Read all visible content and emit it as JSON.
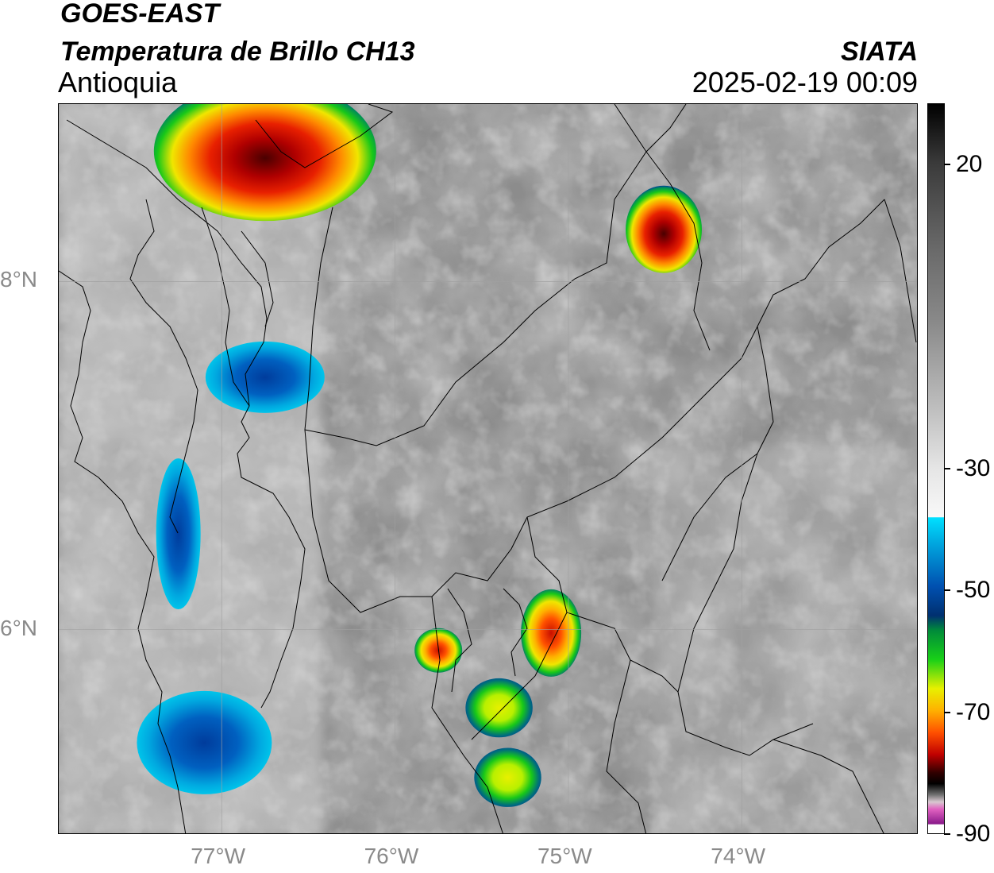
{
  "header": {
    "satellite": "GOES-EAST",
    "product": "Temperatura de Brillo CH13",
    "region": "Antioquia",
    "agency": "SIATA",
    "datetime": "2025-02-19 00:09"
  },
  "map": {
    "lon_range": [
      -77.94,
      -72.98
    ],
    "lat_range": [
      4.82,
      9.02
    ],
    "x_ticks": [
      {
        "value": -77,
        "label": "77°W"
      },
      {
        "value": -76,
        "label": "76°W"
      },
      {
        "value": -75,
        "label": "75°W"
      },
      {
        "value": -74,
        "label": "74°W"
      }
    ],
    "y_ticks": [
      {
        "value": 8,
        "label": "8°N"
      },
      {
        "value": 6,
        "label": "6°N"
      }
    ],
    "gridlines": true,
    "background_color": "#8c8c8c",
    "storm_cells": [
      {
        "name": "cell-north-coast",
        "lon": -76.75,
        "lat": 8.75,
        "min_temp": -70
      },
      {
        "name": "cell-northeast",
        "lon": -74.45,
        "lat": 8.3,
        "min_temp": -70
      },
      {
        "name": "cell-medellin-west",
        "lon": -75.75,
        "lat": 5.88,
        "min_temp": -65
      },
      {
        "name": "cell-medellin-east",
        "lon": -75.1,
        "lat": 5.98,
        "min_temp": -62
      },
      {
        "name": "cell-south-a",
        "lon": -75.4,
        "lat": 5.55,
        "min_temp": -48
      },
      {
        "name": "cell-south-b",
        "lon": -75.35,
        "lat": 5.15,
        "min_temp": -48
      },
      {
        "name": "cell-choco-north",
        "lon": -76.75,
        "lat": 7.45,
        "min_temp": -35
      },
      {
        "name": "cell-choco-central",
        "lon": -77.25,
        "lat": 6.55,
        "min_temp": -35
      },
      {
        "name": "cell-choco-south",
        "lon": -77.1,
        "lat": 5.35,
        "min_temp": -32
      }
    ]
  },
  "colorbar": {
    "range": [
      -90,
      30
    ],
    "ticks": [
      {
        "value": 20,
        "label": "20"
      },
      {
        "value": -30,
        "label": "-30"
      },
      {
        "value": -50,
        "label": "-50"
      },
      {
        "value": -70,
        "label": "-70"
      },
      {
        "value": -90,
        "label": "-90"
      }
    ],
    "colors": {
      "cyan": "#00d4f0",
      "blue": "#003c9c",
      "green": "#18c818",
      "yellow": "#f0e600",
      "orange": "#ff8a00",
      "red": "#d81800",
      "darkred": "#6e0000",
      "black": "#101010",
      "magenta": "#c040b0",
      "purple": "#8a1a8a"
    }
  }
}
